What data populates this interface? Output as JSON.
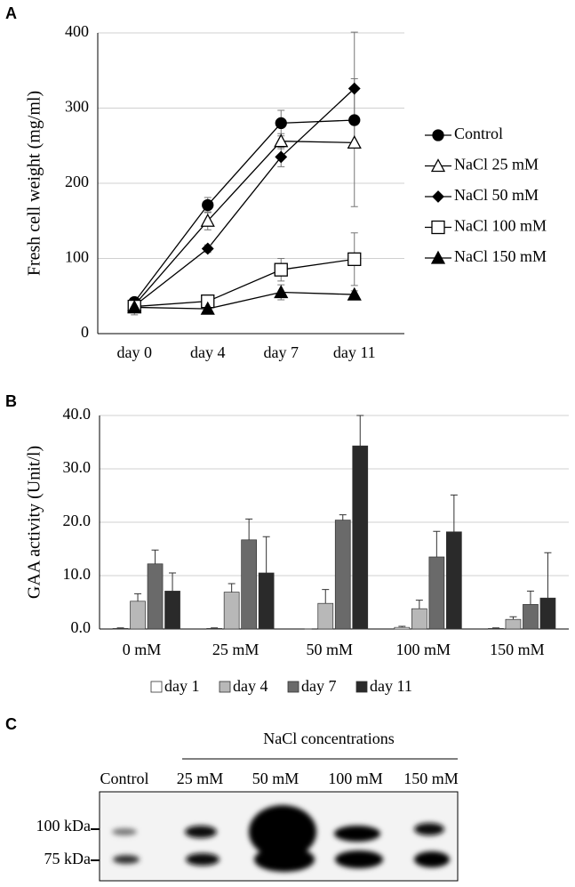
{
  "panel_labels": [
    "A",
    "B",
    "C"
  ],
  "chart_data": [
    {
      "type": "line",
      "ylabel": "Fresh cell weight (mg/ml)",
      "categories": [
        "day 0",
        "day 4",
        "day 7",
        "day 11"
      ],
      "ylim": [
        0,
        400
      ],
      "yticks": [
        0,
        100,
        200,
        300,
        400
      ],
      "grid": true,
      "legend": "right",
      "series": [
        {
          "name": "Control",
          "color": "#000000",
          "marker": "circle",
          "marker_fill": "#000000",
          "values": [
            42,
            171,
            280,
            284
          ],
          "errors": [
            3,
            10,
            17,
            5
          ]
        },
        {
          "name": "NaCl 25 mM",
          "color": "#000000",
          "marker": "triangle",
          "marker_fill": "#ffffff",
          "values": [
            38,
            150,
            256,
            254
          ],
          "errors": [
            3,
            12,
            10,
            85
          ]
        },
        {
          "name": "NaCl 50 mM",
          "color": "#000000",
          "marker": "diamond",
          "marker_fill": "#000000",
          "values": [
            37,
            113,
            235,
            326
          ],
          "errors": [
            3,
            5,
            13,
            75
          ]
        },
        {
          "name": "NaCl 100 mM",
          "color": "#000000",
          "marker": "square",
          "marker_fill": "#ffffff",
          "values": [
            36,
            43,
            85,
            99
          ],
          "errors": [
            3,
            8,
            15,
            35
          ]
        },
        {
          "name": "NaCl 150 mM",
          "color": "#000000",
          "marker": "triangle",
          "marker_fill": "#000000",
          "values": [
            35,
            33,
            55,
            52
          ],
          "errors": [
            10,
            3,
            10,
            5
          ]
        }
      ]
    },
    {
      "type": "bar",
      "ylabel": "GAA activity (Unit/l)",
      "categories": [
        "0 mM",
        "25 mM",
        "50 mM",
        "100 mM",
        "150 mM"
      ],
      "ylim": [
        0,
        40
      ],
      "yticks": [
        {
          "value": 0,
          "label": "0.0"
        },
        {
          "value": 10,
          "label": "10.0"
        },
        {
          "value": 20,
          "label": "20.0"
        },
        {
          "value": 30,
          "label": "30.0"
        },
        {
          "value": 40,
          "label": "40.0"
        }
      ],
      "grid": true,
      "legend": "bottom",
      "series": [
        {
          "name": "day 1",
          "color": "#ffffff",
          "values": [
            0.1,
            0.1,
            0,
            0.3,
            0.1
          ],
          "errors": [
            0.1,
            0.1,
            0,
            0.2,
            0.1
          ]
        },
        {
          "name": "day 4",
          "color": "#b8b8b8",
          "values": [
            5.2,
            6.9,
            4.8,
            3.8,
            1.8
          ],
          "errors": [
            1.4,
            1.6,
            2.6,
            1.6,
            0.5
          ]
        },
        {
          "name": "day 7",
          "color": "#6a6a6a",
          "values": [
            12.2,
            16.7,
            20.4,
            13.5,
            4.6
          ],
          "errors": [
            2.6,
            3.9,
            1.0,
            4.8,
            2.5
          ]
        },
        {
          "name": "day 11",
          "color": "#2a2a2a",
          "values": [
            7.1,
            10.5,
            34.3,
            18.2,
            5.8
          ],
          "errors": [
            3.4,
            6.8,
            5.7,
            6.9,
            8.5
          ]
        }
      ]
    }
  ],
  "blot": {
    "title": "NaCl concentrations",
    "lanes": [
      "Control",
      "25 mM",
      "50 mM",
      "100 mM",
      "150 mM"
    ],
    "markers": [
      "100 kDa",
      "75 kDa"
    ]
  }
}
